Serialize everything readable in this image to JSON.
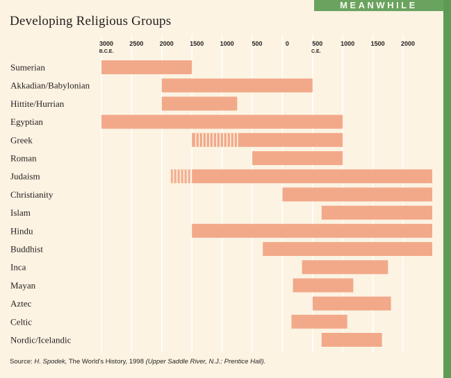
{
  "banner": "MEANWHILE",
  "colors": {
    "bar": "#f2a98a",
    "grid": "#ffffff",
    "banner": "#6aa35f"
  },
  "chart_data": {
    "type": "bar",
    "orientation": "horizontal",
    "title": "Developing Religious Groups",
    "x_unit": "year",
    "xlim": [
      -3000,
      2300
    ],
    "era_labels": {
      "before": "B.C.E.",
      "after": "C.E."
    },
    "ticks": [
      {
        "value": -3000,
        "label": "3000"
      },
      {
        "value": -2500,
        "label": "2500"
      },
      {
        "value": -2000,
        "label": "2000"
      },
      {
        "value": -1500,
        "label": "1500"
      },
      {
        "value": -1000,
        "label": "1000"
      },
      {
        "value": -500,
        "label": "500"
      },
      {
        "value": 0,
        "label": "0"
      },
      {
        "value": 500,
        "label": "500"
      },
      {
        "value": 1000,
        "label": "1000"
      },
      {
        "value": 1500,
        "label": "1500"
      },
      {
        "value": 2000,
        "label": "2000"
      }
    ],
    "categories": [
      "Sumerian",
      "Akkadian/Babylonian",
      "Hittite/Hurrian",
      "Egyptian",
      "Greek",
      "Roman",
      "Judaism",
      "Christianity",
      "Islam",
      "Hindu",
      "Buddhist",
      "Inca",
      "Mayan",
      "Aztec",
      "Celtic",
      "Nordic/Icelandic"
    ],
    "bars": [
      {
        "start": -3000,
        "end": -1500
      },
      {
        "start": -2000,
        "end": 500
      },
      {
        "start": -2000,
        "end": -750
      },
      {
        "start": -3000,
        "end": 1000
      },
      {
        "start": -1500,
        "end": 1000,
        "uncertain_start": -1480,
        "uncertain_end": -750
      },
      {
        "start": -500,
        "end": 1000
      },
      {
        "start": -1500,
        "end": 2500,
        "uncertain_start": -1850,
        "uncertain_end": -1510
      },
      {
        "start": 0,
        "end": 2500
      },
      {
        "start": 650,
        "end": 2500
      },
      {
        "start": -1500,
        "end": 2500
      },
      {
        "start": -325,
        "end": 2500
      },
      {
        "start": 325,
        "end": 1750
      },
      {
        "start": 175,
        "end": 1175
      },
      {
        "start": 500,
        "end": 1800
      },
      {
        "start": 150,
        "end": 1075
      },
      {
        "start": 650,
        "end": 1650
      }
    ]
  },
  "source": {
    "prefix": "Source:",
    "author": "H. Spodek,",
    "work": "The World's History, 1998",
    "publisher": "(Upper Saddle River, N.J.: Prentice Hall)."
  }
}
